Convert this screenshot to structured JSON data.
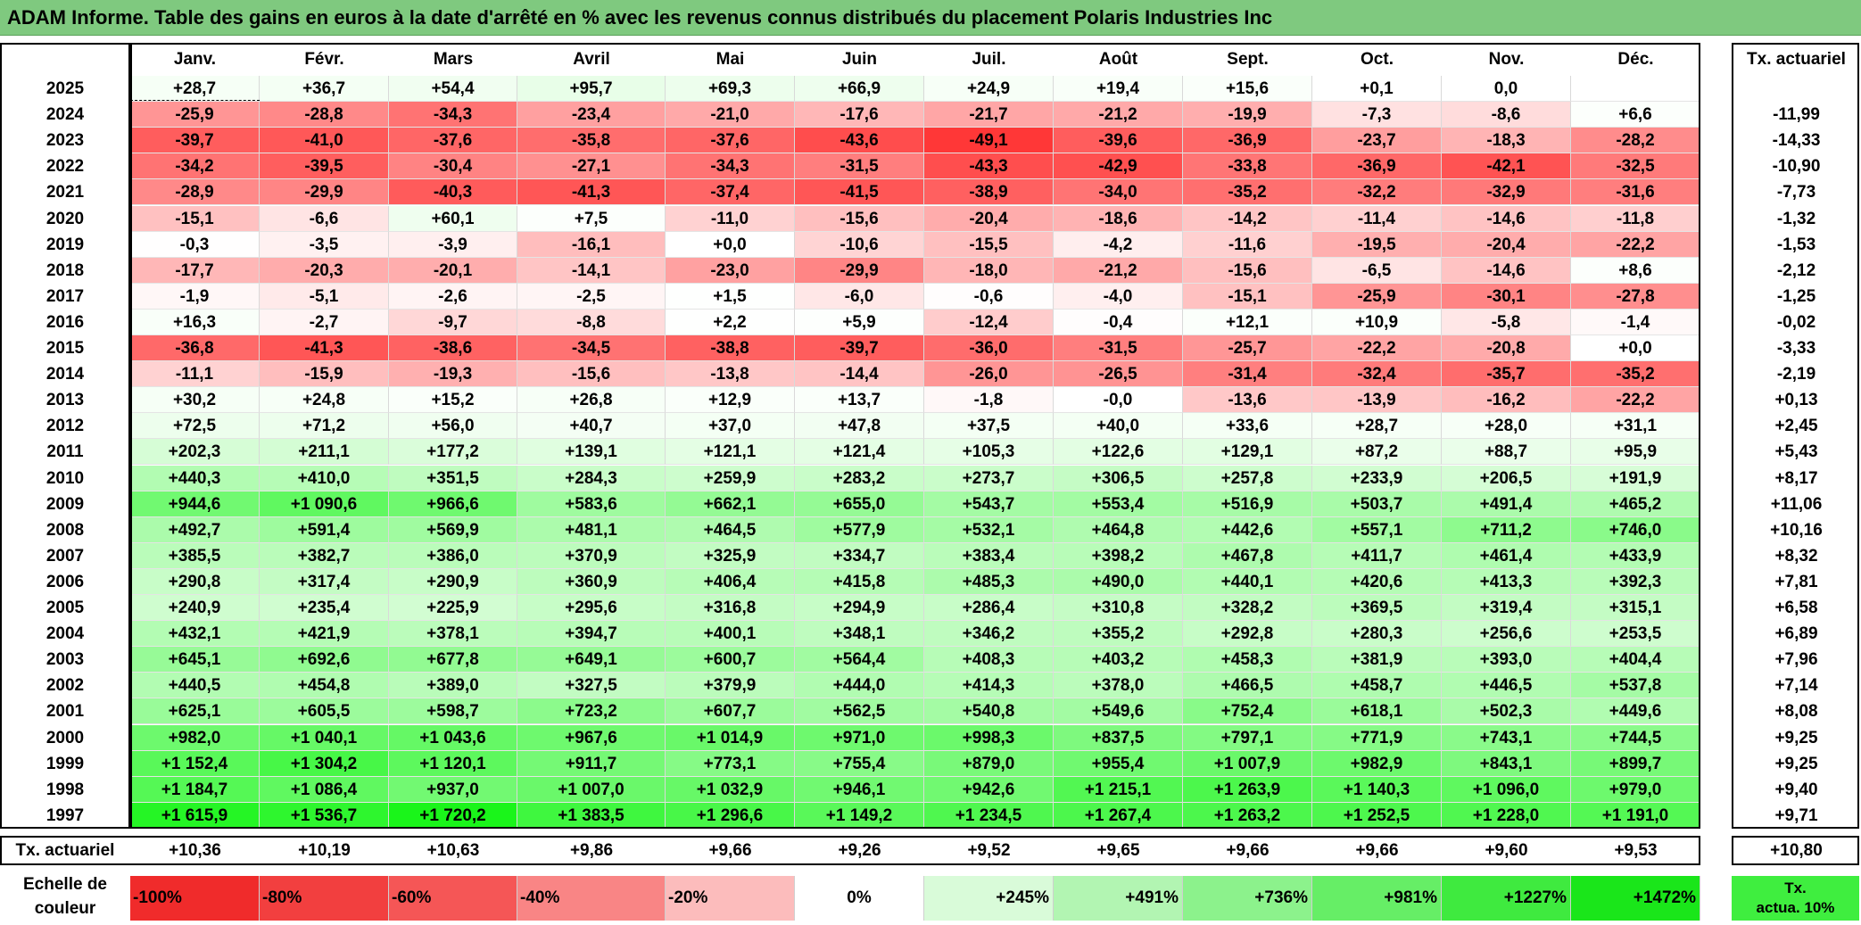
{
  "title": "ADAM Informe. Table des gains en euros à la date d'arrêté en % avec les revenus connus distribués du placement Polaris Industries Inc",
  "months": [
    "Janv.",
    "Févr.",
    "Mars",
    "Avril",
    "Mai",
    "Juin",
    "Juil.",
    "Août",
    "Sept.",
    "Oct.",
    "Nov.",
    "Déc."
  ],
  "tx_header": "Tx. actuariel",
  "rows": [
    {
      "year": "2025",
      "vals": [
        "+28,7",
        "+36,7",
        "+54,4",
        "+95,7",
        "+69,3",
        "+66,9",
        "+24,9",
        "+19,4",
        "+15,6",
        "+0,1",
        "0,0",
        ""
      ],
      "tx": ""
    },
    {
      "year": "2024",
      "vals": [
        "-25,9",
        "-28,8",
        "-34,3",
        "-23,4",
        "-21,0",
        "-17,6",
        "-21,7",
        "-21,2",
        "-19,9",
        "-7,3",
        "-8,6",
        "+6,6"
      ],
      "tx": "-11,99"
    },
    {
      "year": "2023",
      "vals": [
        "-39,7",
        "-41,0",
        "-37,6",
        "-35,8",
        "-37,6",
        "-43,6",
        "-49,1",
        "-39,6",
        "-36,9",
        "-23,7",
        "-18,3",
        "-28,2"
      ],
      "tx": "-14,33"
    },
    {
      "year": "2022",
      "vals": [
        "-34,2",
        "-39,5",
        "-30,4",
        "-27,1",
        "-34,3",
        "-31,5",
        "-43,3",
        "-42,9",
        "-33,8",
        "-36,9",
        "-42,1",
        "-32,5"
      ],
      "tx": "-10,90"
    },
    {
      "year": "2021",
      "vals": [
        "-28,9",
        "-29,9",
        "-40,3",
        "-41,3",
        "-37,4",
        "-41,5",
        "-38,9",
        "-34,0",
        "-35,2",
        "-32,2",
        "-32,9",
        "-31,6"
      ],
      "tx": "-7,73"
    },
    {
      "year": "2020",
      "vals": [
        "-15,1",
        "-6,6",
        "+60,1",
        "+7,5",
        "-11,0",
        "-15,6",
        "-20,4",
        "-18,6",
        "-14,2",
        "-11,4",
        "-14,6",
        "-11,8"
      ],
      "tx": "-1,32"
    },
    {
      "year": "2019",
      "vals": [
        "-0,3",
        "-3,5",
        "-3,9",
        "-16,1",
        "+0,0",
        "-10,6",
        "-15,5",
        "-4,2",
        "-11,6",
        "-19,5",
        "-20,4",
        "-22,2"
      ],
      "tx": "-1,53"
    },
    {
      "year": "2018",
      "vals": [
        "-17,7",
        "-20,3",
        "-20,1",
        "-14,1",
        "-23,0",
        "-29,9",
        "-18,0",
        "-21,2",
        "-15,6",
        "-6,5",
        "-14,6",
        "+8,6"
      ],
      "tx": "-2,12"
    },
    {
      "year": "2017",
      "vals": [
        "-1,9",
        "-5,1",
        "-2,6",
        "-2,5",
        "+1,5",
        "-6,0",
        "-0,6",
        "-4,0",
        "-15,1",
        "-25,9",
        "-30,1",
        "-27,8"
      ],
      "tx": "-1,25"
    },
    {
      "year": "2016",
      "vals": [
        "+16,3",
        "-2,7",
        "-9,7",
        "-8,8",
        "+2,2",
        "+5,9",
        "-12,4",
        "-0,4",
        "+12,1",
        "+10,9",
        "-5,8",
        "-1,4"
      ],
      "tx": "-0,02"
    },
    {
      "year": "2015",
      "vals": [
        "-36,8",
        "-41,3",
        "-38,6",
        "-34,5",
        "-38,8",
        "-39,7",
        "-36,0",
        "-31,5",
        "-25,7",
        "-22,2",
        "-20,8",
        "+0,0"
      ],
      "tx": "-3,33"
    },
    {
      "year": "2014",
      "vals": [
        "-11,1",
        "-15,9",
        "-19,3",
        "-15,6",
        "-13,8",
        "-14,4",
        "-26,0",
        "-26,5",
        "-31,4",
        "-32,4",
        "-35,7",
        "-35,2"
      ],
      "tx": "-2,19"
    },
    {
      "year": "2013",
      "vals": [
        "+30,2",
        "+24,8",
        "+15,2",
        "+26,8",
        "+12,9",
        "+13,7",
        "-1,8",
        "-0,0",
        "-13,6",
        "-13,9",
        "-16,2",
        "-22,2"
      ],
      "tx": "+0,13"
    },
    {
      "year": "2012",
      "vals": [
        "+72,5",
        "+71,2",
        "+56,0",
        "+40,7",
        "+37,0",
        "+47,8",
        "+37,5",
        "+40,0",
        "+33,6",
        "+28,7",
        "+28,0",
        "+31,1"
      ],
      "tx": "+2,45"
    },
    {
      "year": "2011",
      "vals": [
        "+202,3",
        "+211,1",
        "+177,2",
        "+139,1",
        "+121,1",
        "+121,4",
        "+105,3",
        "+122,6",
        "+129,1",
        "+87,2",
        "+88,7",
        "+95,9"
      ],
      "tx": "+5,43"
    },
    {
      "year": "2010",
      "vals": [
        "+440,3",
        "+410,0",
        "+351,5",
        "+284,3",
        "+259,9",
        "+283,2",
        "+273,7",
        "+306,5",
        "+257,8",
        "+233,9",
        "+206,5",
        "+191,9"
      ],
      "tx": "+8,17"
    },
    {
      "year": "2009",
      "vals": [
        "+944,6",
        "+1 090,6",
        "+966,6",
        "+583,6",
        "+662,1",
        "+655,0",
        "+543,7",
        "+553,4",
        "+516,9",
        "+503,7",
        "+491,4",
        "+465,2"
      ],
      "tx": "+11,06"
    },
    {
      "year": "2008",
      "vals": [
        "+492,7",
        "+591,4",
        "+569,9",
        "+481,1",
        "+464,5",
        "+577,9",
        "+532,1",
        "+464,8",
        "+442,6",
        "+557,1",
        "+711,2",
        "+746,0"
      ],
      "tx": "+10,16"
    },
    {
      "year": "2007",
      "vals": [
        "+385,5",
        "+382,7",
        "+386,0",
        "+370,9",
        "+325,9",
        "+334,7",
        "+383,4",
        "+398,2",
        "+467,8",
        "+411,7",
        "+461,4",
        "+433,9"
      ],
      "tx": "+8,32"
    },
    {
      "year": "2006",
      "vals": [
        "+290,8",
        "+317,4",
        "+290,9",
        "+360,9",
        "+406,4",
        "+415,8",
        "+485,3",
        "+490,0",
        "+440,1",
        "+420,6",
        "+413,3",
        "+392,3"
      ],
      "tx": "+7,81"
    },
    {
      "year": "2005",
      "vals": [
        "+240,9",
        "+235,4",
        "+225,9",
        "+295,6",
        "+316,8",
        "+294,9",
        "+286,4",
        "+310,8",
        "+328,2",
        "+369,5",
        "+319,4",
        "+315,1"
      ],
      "tx": "+6,58"
    },
    {
      "year": "2004",
      "vals": [
        "+432,1",
        "+421,9",
        "+378,1",
        "+394,7",
        "+400,1",
        "+348,1",
        "+346,2",
        "+355,2",
        "+292,8",
        "+280,3",
        "+256,6",
        "+253,5"
      ],
      "tx": "+6,89"
    },
    {
      "year": "2003",
      "vals": [
        "+645,1",
        "+692,6",
        "+677,8",
        "+649,1",
        "+600,7",
        "+564,4",
        "+408,3",
        "+403,2",
        "+458,3",
        "+381,9",
        "+393,0",
        "+404,4"
      ],
      "tx": "+7,96"
    },
    {
      "year": "2002",
      "vals": [
        "+440,5",
        "+454,8",
        "+389,0",
        "+327,5",
        "+379,9",
        "+444,0",
        "+414,3",
        "+378,0",
        "+466,5",
        "+458,7",
        "+446,5",
        "+537,8"
      ],
      "tx": "+7,14"
    },
    {
      "year": "2001",
      "vals": [
        "+625,1",
        "+605,5",
        "+598,7",
        "+723,2",
        "+607,7",
        "+562,5",
        "+540,8",
        "+549,6",
        "+752,4",
        "+618,1",
        "+502,3",
        "+449,6"
      ],
      "tx": "+8,08"
    },
    {
      "year": "2000",
      "vals": [
        "+982,0",
        "+1 040,1",
        "+1 043,6",
        "+967,6",
        "+1 014,9",
        "+971,0",
        "+998,3",
        "+837,5",
        "+797,1",
        "+771,9",
        "+743,1",
        "+744,5"
      ],
      "tx": "+9,25"
    },
    {
      "year": "1999",
      "vals": [
        "+1 152,4",
        "+1 304,2",
        "+1 120,1",
        "+911,7",
        "+773,1",
        "+755,4",
        "+879,0",
        "+955,4",
        "+1 007,9",
        "+982,9",
        "+843,1",
        "+899,7"
      ],
      "tx": "+9,25"
    },
    {
      "year": "1998",
      "vals": [
        "+1 184,7",
        "+1 086,4",
        "+937,0",
        "+1 007,0",
        "+1 032,9",
        "+946,1",
        "+942,6",
        "+1 215,1",
        "+1 263,9",
        "+1 140,3",
        "+1 096,0",
        "+979,0"
      ],
      "tx": "+9,40"
    },
    {
      "year": "1997",
      "vals": [
        "+1 615,9",
        "+1 536,7",
        "+1 720,2",
        "+1 383,5",
        "+1 296,6",
        "+1 149,2",
        "+1 234,5",
        "+1 267,4",
        "+1 263,2",
        "+1 252,5",
        "+1 228,0",
        "+1 191,0"
      ],
      "tx": "+9,71"
    }
  ],
  "footer": {
    "label": "Tx. actuariel",
    "vals": [
      "+10,36",
      "+10,19",
      "+10,63",
      "+9,86",
      "+9,66",
      "+9,26",
      "+9,52",
      "+9,65",
      "+9,66",
      "+9,66",
      "+9,60",
      "+9,53"
    ],
    "total": "+10,80"
  },
  "legend": {
    "label_line1": "Echelle de",
    "label_line2": "couleur",
    "stops": [
      "-100%",
      "-80%",
      "-60%",
      "-40%",
      "-20%",
      "0%",
      "+245%",
      "+491%",
      "+736%",
      "+981%",
      "+1227%",
      "+1472%"
    ],
    "last_line1": "Tx.",
    "last_line2": "actua. 10%"
  },
  "colors": {
    "title_bg": "#7fc97f",
    "negative_max": "#ff3333",
    "neutral": "#ffffff",
    "positive_max": "#1af51a",
    "legend_stops": [
      "#f02b2b",
      "#f23f3f",
      "#f55656",
      "#f98585",
      "#fcbcbc",
      "#ffffff",
      "#d9fbd9",
      "#b2f5b2",
      "#8cf28c",
      "#66ee66",
      "#3fea3f",
      "#1ae61a"
    ],
    "legend_last": "#3fee3f"
  }
}
